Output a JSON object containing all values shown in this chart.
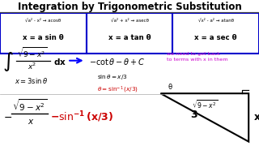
{
  "title": "Integration by Trigonometric Substitution",
  "bg_color": "#ffffff",
  "title_color": "#000000",
  "box_color": "#0000cc",
  "box1_top": "√a² - x² → acosθ",
  "box1_bot": "x = a sin θ",
  "box2_top": "√a² + x² → asecθ",
  "box2_bot": "x = a tan θ",
  "box3_top": "√x² - a² → atanθ",
  "box3_bot": "x = a sec θ",
  "arrow_color": "#0000ff",
  "back_text": "we need to get back\nto terms with x in them",
  "back_color": "#cc00cc",
  "theta_color": "#cc0000",
  "final_red_color": "#cc0000",
  "tri_hyp": "3",
  "tri_opp": "x",
  "tri_adj": "√9 - x²",
  "tri_angle": "θ"
}
